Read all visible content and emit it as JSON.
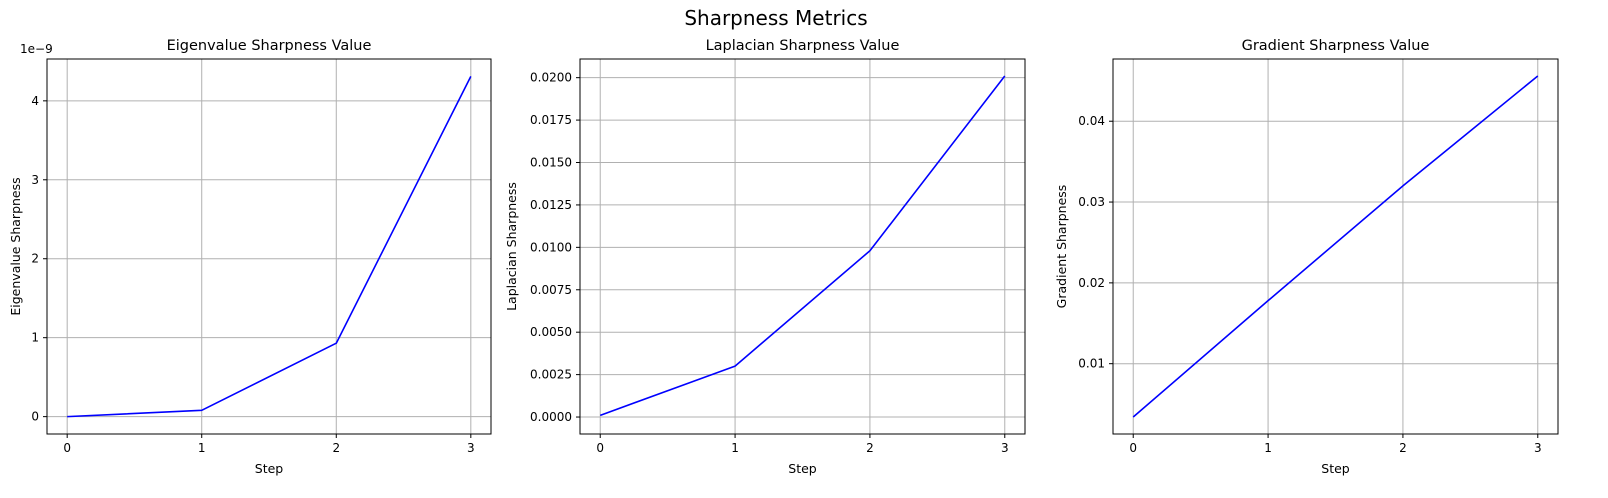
{
  "figure": {
    "title": "Sharpness Metrics"
  },
  "chart_data": [
    {
      "type": "line",
      "title": "Eigenvalue Sharpness Value",
      "xlabel": "Step",
      "ylabel": "Eigenvalue Sharpness",
      "offset_text": "1e−9",
      "x": [
        0,
        1,
        2,
        3
      ],
      "series": [
        {
          "color": "#0000ff",
          "values": [
            0.0,
            8e-11,
            9.3e-10,
            4.31e-09
          ]
        }
      ],
      "xlim": [
        -0.15,
        3.15
      ],
      "ylim": [
        -2.2e-10,
        4.53e-09
      ],
      "xticks": [
        0,
        1,
        2,
        3
      ],
      "xtick_labels": [
        "0",
        "1",
        "2",
        "3"
      ],
      "yticks": [
        0,
        1e-09,
        2e-09,
        3e-09,
        4e-09
      ],
      "ytick_labels": [
        "0",
        "1",
        "2",
        "3",
        "4"
      ],
      "grid": true
    },
    {
      "type": "line",
      "title": "Laplacian Sharpness Value",
      "xlabel": "Step",
      "ylabel": "Laplacian Sharpness",
      "x": [
        0,
        1,
        2,
        3
      ],
      "series": [
        {
          "color": "#0000ff",
          "values": [
            0.0001,
            0.003,
            0.0098,
            0.0201
          ]
        }
      ],
      "xlim": [
        -0.15,
        3.15
      ],
      "ylim": [
        -0.001,
        0.0211
      ],
      "xticks": [
        0,
        1,
        2,
        3
      ],
      "xtick_labels": [
        "0",
        "1",
        "2",
        "3"
      ],
      "yticks": [
        0,
        0.0025,
        0.005,
        0.0075,
        0.01,
        0.0125,
        0.015,
        0.0175,
        0.02
      ],
      "ytick_labels": [
        "0.0000",
        "0.0025",
        "0.0050",
        "0.0075",
        "0.0100",
        "0.0125",
        "0.0150",
        "0.0175",
        "0.0200"
      ],
      "grid": true
    },
    {
      "type": "line",
      "title": "Gradient Sharpness Value",
      "xlabel": "Step",
      "ylabel": "Gradient Sharpness",
      "x": [
        0,
        1,
        2,
        3
      ],
      "series": [
        {
          "color": "#0000ff",
          "values": [
            0.0034,
            0.0178,
            0.032,
            0.0456
          ]
        }
      ],
      "xlim": [
        -0.15,
        3.15
      ],
      "ylim": [
        0.0013,
        0.0477
      ],
      "xticks": [
        0,
        1,
        2,
        3
      ],
      "xtick_labels": [
        "0",
        "1",
        "2",
        "3"
      ],
      "yticks": [
        0.01,
        0.02,
        0.03,
        0.04
      ],
      "ytick_labels": [
        "0.01",
        "0.02",
        "0.03",
        "0.04"
      ],
      "grid": true
    }
  ]
}
